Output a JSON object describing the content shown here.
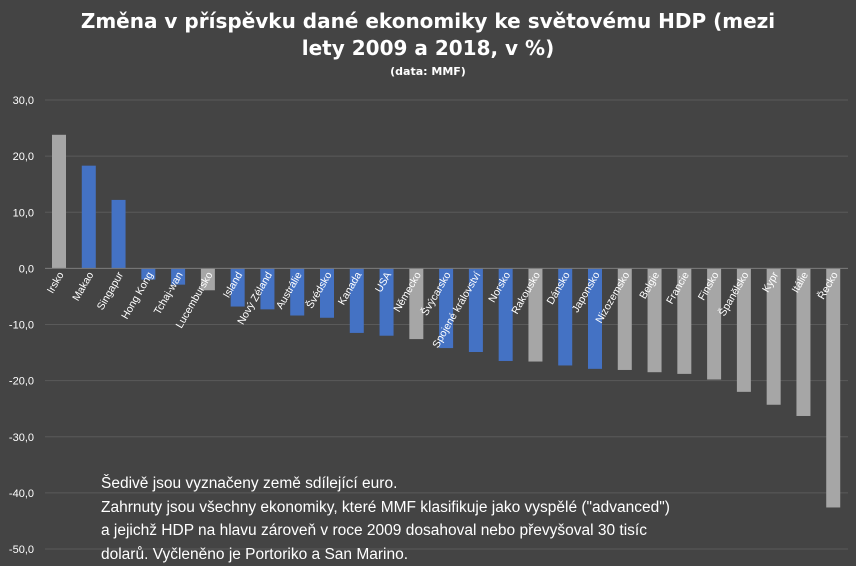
{
  "chart_data": {
    "type": "bar",
    "title_line1": "Změna v příspěvku dané ekonomiky ke světovému HDP (mezi",
    "title_line2": "lety 2009 a 2018, v %)",
    "subtitle": "(data: MMF)",
    "ylim": [
      -50,
      30
    ],
    "yticks": [
      "30,0",
      "20,0",
      "10,0",
      "0,0",
      "-10,0",
      "-20,0",
      "-30,0",
      "-40,0",
      "-50,0"
    ],
    "grid": true,
    "colors": {
      "euro": "#a6a6a6",
      "other": "#4472c4",
      "background": "#444444",
      "grid": "#5a5a5a"
    },
    "categories": [
      "Irsko",
      "Makao",
      "Singapur",
      "Hong Kong",
      "Tchaj-wan",
      "Lucembursko",
      "Island",
      "Nový Zéland",
      "Austrálie",
      "Švédsko",
      "Kanada",
      "USA",
      "Německo",
      "Švýcarsko",
      "Spojené království",
      "Norsko",
      "Rakousko",
      "Dánsko",
      "Japonsko",
      "Nizozemsko",
      "Belgie",
      "Francie",
      "Finsko",
      "Španělsko",
      "Kypr",
      "Itálie",
      "Řecko"
    ],
    "values": [
      23.8,
      18.3,
      12.2,
      -2.0,
      -2.9,
      -3.9,
      -6.8,
      -7.3,
      -8.4,
      -8.8,
      -11.5,
      -12.0,
      -12.6,
      -14.2,
      -14.9,
      -16.5,
      -16.6,
      -17.3,
      -17.9,
      -18.1,
      -18.5,
      -18.8,
      -19.8,
      -22.0,
      -24.3,
      -26.3,
      -42.6
    ],
    "euro": [
      true,
      false,
      false,
      false,
      false,
      true,
      false,
      false,
      false,
      false,
      false,
      false,
      true,
      false,
      false,
      false,
      true,
      false,
      false,
      true,
      true,
      true,
      true,
      true,
      true,
      true,
      true
    ]
  },
  "note": {
    "line1": "Šedivě jsou vyznačeny země sdílející euro.",
    "line2": "Zahrnuty jsou všechny ekonomiky, které MMF klasifikuje jako vyspělé (\"advanced\")",
    "line3": "a jejichž HDP na hlavu zároveň v roce 2009 dosahoval nebo převyšoval 30 tisíc",
    "line4": "dolarů. Vyčleněno je Portoriko a San Marino."
  }
}
